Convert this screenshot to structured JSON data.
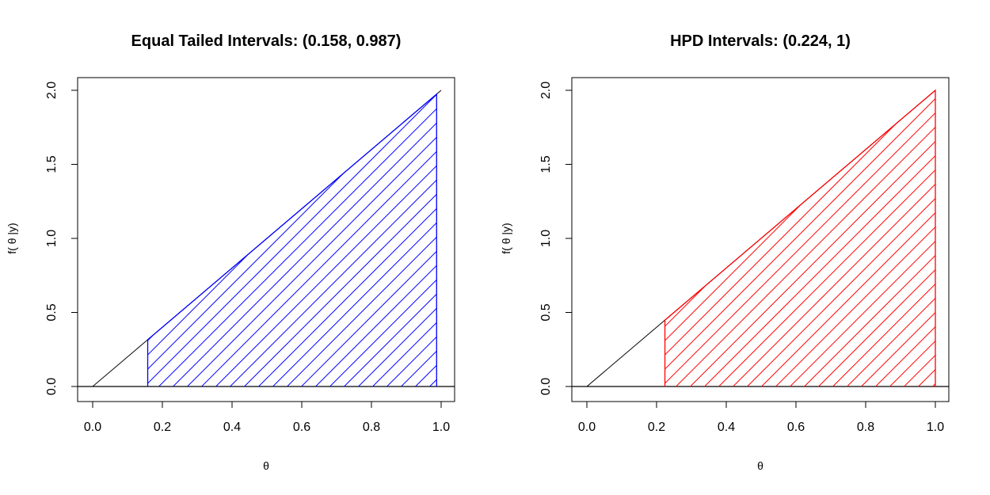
{
  "chart_data": [
    {
      "type": "area",
      "title": "Equal Tailed Intervals: (0.158, 0.987)",
      "xlabel": "θ",
      "ylabel": "f( θ |y)",
      "xlim": [
        0,
        1
      ],
      "ylim": [
        0,
        2
      ],
      "xticks": [
        "0.0",
        "0.2",
        "0.4",
        "0.6",
        "0.8",
        "1.0"
      ],
      "yticks": [
        "0.0",
        "0.5",
        "1.0",
        "1.5",
        "2.0"
      ],
      "density": {
        "x": [
          0,
          1
        ],
        "y": [
          0,
          2
        ]
      },
      "interval": [
        0.158,
        0.987
      ],
      "shade_color": "#0000ff",
      "line_color": "#000000",
      "grid": false
    },
    {
      "type": "area",
      "title": "HPD Intervals: (0.224, 1)",
      "xlabel": "θ",
      "ylabel": "f( θ |y)",
      "xlim": [
        0,
        1
      ],
      "ylim": [
        0,
        2
      ],
      "xticks": [
        "0.0",
        "0.2",
        "0.4",
        "0.6",
        "0.8",
        "1.0"
      ],
      "yticks": [
        "0.0",
        "0.5",
        "1.0",
        "1.5",
        "2.0"
      ],
      "density": {
        "x": [
          0,
          1
        ],
        "y": [
          0,
          2
        ]
      },
      "interval": [
        0.224,
        1
      ],
      "shade_color": "#ff0000",
      "line_color": "#000000",
      "grid": false
    }
  ]
}
